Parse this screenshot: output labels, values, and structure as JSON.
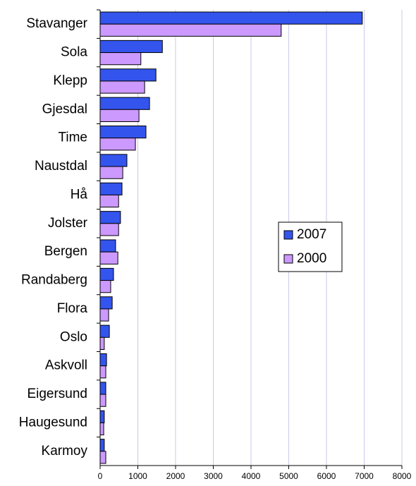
{
  "chart_data": {
    "type": "barh",
    "categories": [
      "Stavanger",
      "Sola",
      "Klepp",
      "Gjesdal",
      "Time",
      "Naustdal",
      "Hå",
      "Jolster",
      "Bergen",
      "Randaberg",
      "Flora",
      "Oslo",
      "Askvoll",
      "Eigersund",
      "Haugesund",
      "Karmoy"
    ],
    "series": [
      {
        "name": "2007",
        "color": "#3355ee",
        "values": [
          6950,
          1650,
          1480,
          1310,
          1215,
          710,
          580,
          540,
          410,
          355,
          320,
          245,
          170,
          150,
          110,
          110
        ]
      },
      {
        "name": "2000",
        "color": "#cc99ff",
        "values": [
          4800,
          1080,
          1180,
          1030,
          935,
          600,
          490,
          490,
          470,
          280,
          225,
          110,
          150,
          150,
          95,
          150
        ]
      }
    ],
    "xlim": [
      0,
      8000
    ],
    "xticks": [
      0,
      1000,
      2000,
      3000,
      4000,
      5000,
      6000,
      7000,
      8000
    ],
    "grid": true,
    "legend": "right"
  }
}
